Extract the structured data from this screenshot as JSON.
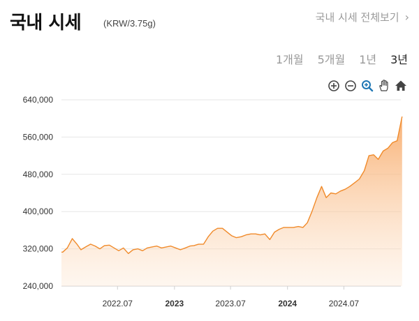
{
  "header": {
    "title": "국내 시세",
    "unit": "(KRW/3.75g)",
    "view_all": "국내 시세 전체보기",
    "chevron": "›"
  },
  "periods": [
    {
      "label": "1개월",
      "active": false
    },
    {
      "label": "5개월",
      "active": false
    },
    {
      "label": "1년",
      "active": false
    },
    {
      "label": "3년",
      "active": true
    }
  ],
  "toolbar": {
    "icons": [
      "zoom-in-icon",
      "zoom-out-icon",
      "zoom-select-icon",
      "pan-hand-icon",
      "home-icon"
    ],
    "accent": "#1f77b4"
  },
  "chart_data": {
    "type": "area",
    "title": "",
    "xlabel": "",
    "ylabel": "",
    "ylim": [
      240000,
      640000
    ],
    "yticks": [
      {
        "value": 240000,
        "label": "240,000"
      },
      {
        "value": 320000,
        "label": "320,000"
      },
      {
        "value": 400000,
        "label": "400,000"
      },
      {
        "value": 480000,
        "label": "480,000"
      },
      {
        "value": 560000,
        "label": "560,000"
      },
      {
        "value": 640000,
        "label": "640,000"
      }
    ],
    "xlim": [
      "2022-01",
      "2025-01"
    ],
    "xticks": [
      {
        "value": "2022-07",
        "label": "2022.07",
        "bold": false
      },
      {
        "value": "2023-01",
        "label": "2023",
        "bold": true
      },
      {
        "value": "2023-07",
        "label": "2023.07",
        "bold": false
      },
      {
        "value": "2024-01",
        "label": "2024",
        "bold": true
      },
      {
        "value": "2024-07",
        "label": "2024.07",
        "bold": false
      }
    ],
    "grid": true,
    "color": "#f08a2a",
    "series": [
      {
        "x": [
          "2022-01-05",
          "2022-01-20",
          "2022-02-05",
          "2022-02-20",
          "2022-03-05",
          "2022-03-20",
          "2022-04-05",
          "2022-04-20",
          "2022-05-05",
          "2022-05-20",
          "2022-06-05",
          "2022-06-20",
          "2022-07-05",
          "2022-07-20",
          "2022-08-05",
          "2022-08-20",
          "2022-09-05",
          "2022-09-20",
          "2022-10-05",
          "2022-10-20",
          "2022-11-05",
          "2022-11-20",
          "2022-12-05",
          "2022-12-20",
          "2023-01-05",
          "2023-01-20",
          "2023-02-05",
          "2023-02-20",
          "2023-03-05",
          "2023-03-20",
          "2023-04-05",
          "2023-04-20",
          "2023-05-05",
          "2023-05-20",
          "2023-06-05",
          "2023-06-20",
          "2023-07-05",
          "2023-07-20",
          "2023-08-05",
          "2023-08-20",
          "2023-09-05",
          "2023-09-20",
          "2023-10-05",
          "2023-10-20",
          "2023-11-05",
          "2023-11-20",
          "2023-12-05",
          "2023-12-20",
          "2024-01-05",
          "2024-01-20",
          "2024-02-05",
          "2024-02-20",
          "2024-03-05",
          "2024-03-20",
          "2024-04-05",
          "2024-04-20",
          "2024-05-05",
          "2024-05-20",
          "2024-06-05",
          "2024-06-20",
          "2024-07-05",
          "2024-07-20",
          "2024-08-05",
          "2024-08-20",
          "2024-09-05",
          "2024-09-20",
          "2024-10-05",
          "2024-10-20",
          "2024-11-05",
          "2024-11-20",
          "2024-12-05",
          "2024-12-20"
        ],
        "y": [
          313000,
          322000,
          342000,
          330000,
          318000,
          324000,
          330000,
          326000,
          320000,
          327000,
          328000,
          322000,
          316000,
          322000,
          310000,
          318000,
          320000,
          316000,
          322000,
          324000,
          326000,
          322000,
          324000,
          326000,
          322000,
          318000,
          322000,
          326000,
          327000,
          330000,
          330000,
          346000,
          358000,
          364000,
          364000,
          356000,
          348000,
          344000,
          346000,
          350000,
          352000,
          352000,
          350000,
          352000,
          340000,
          356000,
          362000,
          366000,
          366000,
          366000,
          368000,
          366000,
          376000,
          400000,
          430000,
          454000,
          430000,
          440000,
          438000,
          444000,
          448000,
          454000,
          462000,
          470000,
          488000,
          520000,
          522000,
          512000,
          530000,
          536000,
          548000,
          552000
        ]
      }
    ],
    "x_end": "2025-01-05",
    "y_end": 604000
  }
}
